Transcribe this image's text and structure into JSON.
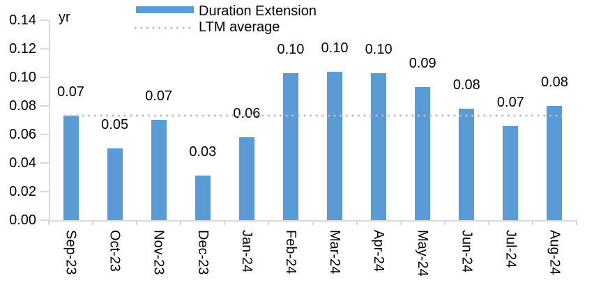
{
  "colors": {
    "bar": "#5B9BD5",
    "dotted_line": "#BDBDBD",
    "axis": "#D9D9D9",
    "text": "#000000"
  },
  "unit_label": "yr",
  "legend": {
    "bar_series_label": "Duration Extension",
    "dotted_series_label": "LTM average"
  },
  "chart_data": {
    "type": "bar",
    "title": "",
    "xlabel": "",
    "ylabel": "yr",
    "categories": [
      "Sep-23",
      "Oct-23",
      "Nov-23",
      "Dec-23",
      "Jan-24",
      "Feb-24",
      "Mar-24",
      "Apr-24",
      "May-24",
      "Jun-24",
      "Jul-24",
      "Aug-24"
    ],
    "series": [
      {
        "name": "Duration Extension",
        "values": [
          0.073,
          0.05,
          0.07,
          0.031,
          0.058,
          0.103,
          0.104,
          0.103,
          0.093,
          0.078,
          0.066,
          0.08
        ]
      }
    ],
    "data_labels": [
      "0.07",
      "0.05",
      "0.07",
      "0.03",
      "0.06",
      "0.10",
      "0.10",
      "0.10",
      "0.09",
      "0.08",
      "0.07",
      "0.08"
    ],
    "ltm_average_line": {
      "name": "LTM average",
      "value": 0.073
    },
    "ylim": [
      0,
      0.14
    ],
    "ytick_step": 0.02,
    "ytick_labels": [
      "0.00",
      "0.02",
      "0.04",
      "0.06",
      "0.08",
      "0.10",
      "0.12",
      "0.14"
    ],
    "grid": "off",
    "legend_position": "top-center",
    "x_label_rotation": "vertical-top-to-bottom"
  }
}
